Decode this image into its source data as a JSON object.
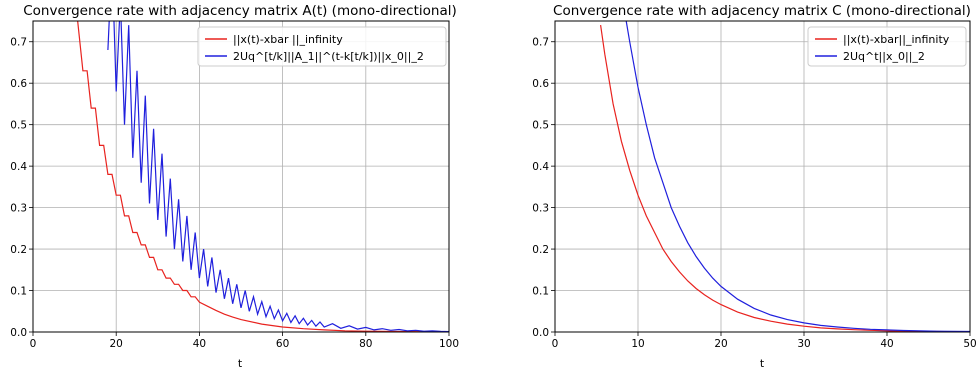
{
  "chart_data": [
    {
      "type": "line",
      "title": "Convergence rate with adjacency matrix A(t) (mono-directional)",
      "xlabel": "t",
      "ylabel": "",
      "xlim": [
        0,
        100
      ],
      "ylim": [
        0,
        0.75
      ],
      "xticks": [
        0,
        20,
        40,
        60,
        80,
        100
      ],
      "yticks": [
        0.0,
        0.1,
        0.2,
        0.3,
        0.4,
        0.5,
        0.6,
        0.7
      ],
      "grid": true,
      "legend_position": "top-right",
      "series": [
        {
          "name": "||x(t)-xbar ||_infinity",
          "color": "#e8231f",
          "x": [
            10,
            12,
            13,
            14,
            15,
            16,
            17,
            18,
            19,
            20,
            21,
            22,
            23,
            24,
            25,
            26,
            27,
            28,
            29,
            30,
            31,
            32,
            33,
            34,
            35,
            36,
            37,
            38,
            39,
            40,
            42,
            44,
            46,
            48,
            50,
            55,
            60,
            65,
            70,
            75,
            80,
            90,
            100
          ],
          "y": [
            0.82,
            0.63,
            0.63,
            0.54,
            0.54,
            0.45,
            0.45,
            0.38,
            0.38,
            0.33,
            0.33,
            0.28,
            0.28,
            0.24,
            0.24,
            0.21,
            0.21,
            0.18,
            0.18,
            0.15,
            0.15,
            0.13,
            0.13,
            0.115,
            0.115,
            0.1,
            0.1,
            0.085,
            0.085,
            0.072,
            0.062,
            0.052,
            0.043,
            0.036,
            0.03,
            0.019,
            0.012,
            0.008,
            0.005,
            0.003,
            0.002,
            0.001,
            0.0004
          ]
        },
        {
          "name": "2Uq^[t/k]||A_1||^(t-k[t/k])||x_0||_2",
          "color": "#2020dd",
          "x": [
            18,
            19,
            20,
            21,
            22,
            23,
            24,
            25,
            26,
            27,
            28,
            29,
            30,
            31,
            32,
            33,
            34,
            35,
            36,
            37,
            38,
            39,
            40,
            41,
            42,
            43,
            44,
            45,
            46,
            47,
            48,
            49,
            50,
            51,
            52,
            53,
            54,
            55,
            56,
            57,
            58,
            59,
            60,
            61,
            62,
            63,
            64,
            65,
            66,
            67,
            68,
            69,
            70,
            72,
            74,
            76,
            78,
            80,
            82,
            84,
            86,
            88,
            90,
            92,
            94,
            96,
            98,
            100
          ],
          "y": [
            0.68,
            0.9,
            0.58,
            0.8,
            0.5,
            0.74,
            0.42,
            0.63,
            0.36,
            0.57,
            0.31,
            0.49,
            0.27,
            0.43,
            0.23,
            0.37,
            0.2,
            0.32,
            0.17,
            0.28,
            0.15,
            0.24,
            0.13,
            0.2,
            0.11,
            0.18,
            0.095,
            0.15,
            0.08,
            0.13,
            0.068,
            0.115,
            0.058,
            0.1,
            0.05,
            0.085,
            0.043,
            0.073,
            0.037,
            0.062,
            0.032,
            0.053,
            0.027,
            0.045,
            0.023,
            0.039,
            0.02,
            0.033,
            0.017,
            0.028,
            0.014,
            0.024,
            0.012,
            0.02,
            0.009,
            0.015,
            0.007,
            0.011,
            0.005,
            0.008,
            0.004,
            0.006,
            0.003,
            0.004,
            0.002,
            0.003,
            0.0015,
            0.001
          ]
        }
      ]
    },
    {
      "type": "line",
      "title": "Convergence rate with adjacency matrix C (mono-directional)",
      "xlabel": "t",
      "ylabel": "",
      "xlim": [
        0,
        50
      ],
      "ylim": [
        0,
        0.75
      ],
      "xticks": [
        0,
        10,
        20,
        30,
        40,
        50
      ],
      "yticks": [
        0.0,
        0.1,
        0.2,
        0.3,
        0.4,
        0.5,
        0.6,
        0.7
      ],
      "grid": true,
      "legend_position": "top-right",
      "series": [
        {
          "name": "||x(t)-xbar||_infinity",
          "color": "#e8231f",
          "x": [
            5.5,
            6,
            7,
            8,
            9,
            10,
            11,
            12,
            13,
            14,
            15,
            16,
            17,
            18,
            19,
            20,
            22,
            24,
            26,
            28,
            30,
            32,
            34,
            36,
            38,
            40,
            42,
            44,
            46,
            48,
            50
          ],
          "y": [
            0.74,
            0.67,
            0.55,
            0.46,
            0.39,
            0.33,
            0.28,
            0.24,
            0.2,
            0.17,
            0.145,
            0.123,
            0.105,
            0.09,
            0.077,
            0.066,
            0.048,
            0.035,
            0.026,
            0.019,
            0.014,
            0.01,
            0.0075,
            0.0055,
            0.004,
            0.003,
            0.002,
            0.0015,
            0.0011,
            0.0008,
            0.0006
          ]
        },
        {
          "name": "2Uq^t||x_0||_2",
          "color": "#2020dd",
          "x": [
            8.5,
            9,
            10,
            11,
            12,
            13,
            14,
            15,
            16,
            17,
            18,
            19,
            20,
            22,
            24,
            26,
            28,
            30,
            32,
            34,
            36,
            38,
            40,
            42,
            44,
            46,
            48,
            50
          ],
          "y": [
            0.76,
            0.7,
            0.59,
            0.5,
            0.42,
            0.36,
            0.3,
            0.255,
            0.215,
            0.182,
            0.154,
            0.13,
            0.11,
            0.079,
            0.057,
            0.041,
            0.03,
            0.022,
            0.016,
            0.012,
            0.009,
            0.0065,
            0.005,
            0.0037,
            0.0028,
            0.002,
            0.0015,
            0.0011
          ]
        }
      ]
    }
  ]
}
